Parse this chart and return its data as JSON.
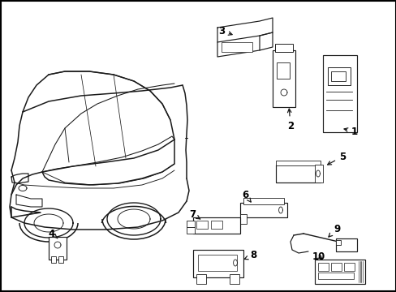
{
  "background_color": "#ffffff",
  "border_color": "#000000",
  "line_color": "#1a1a1a",
  "fig_width": 4.89,
  "fig_height": 3.6,
  "dpi": 100,
  "car_lw": 1.1,
  "comp_lw": 0.85,
  "font_size": 8.5
}
